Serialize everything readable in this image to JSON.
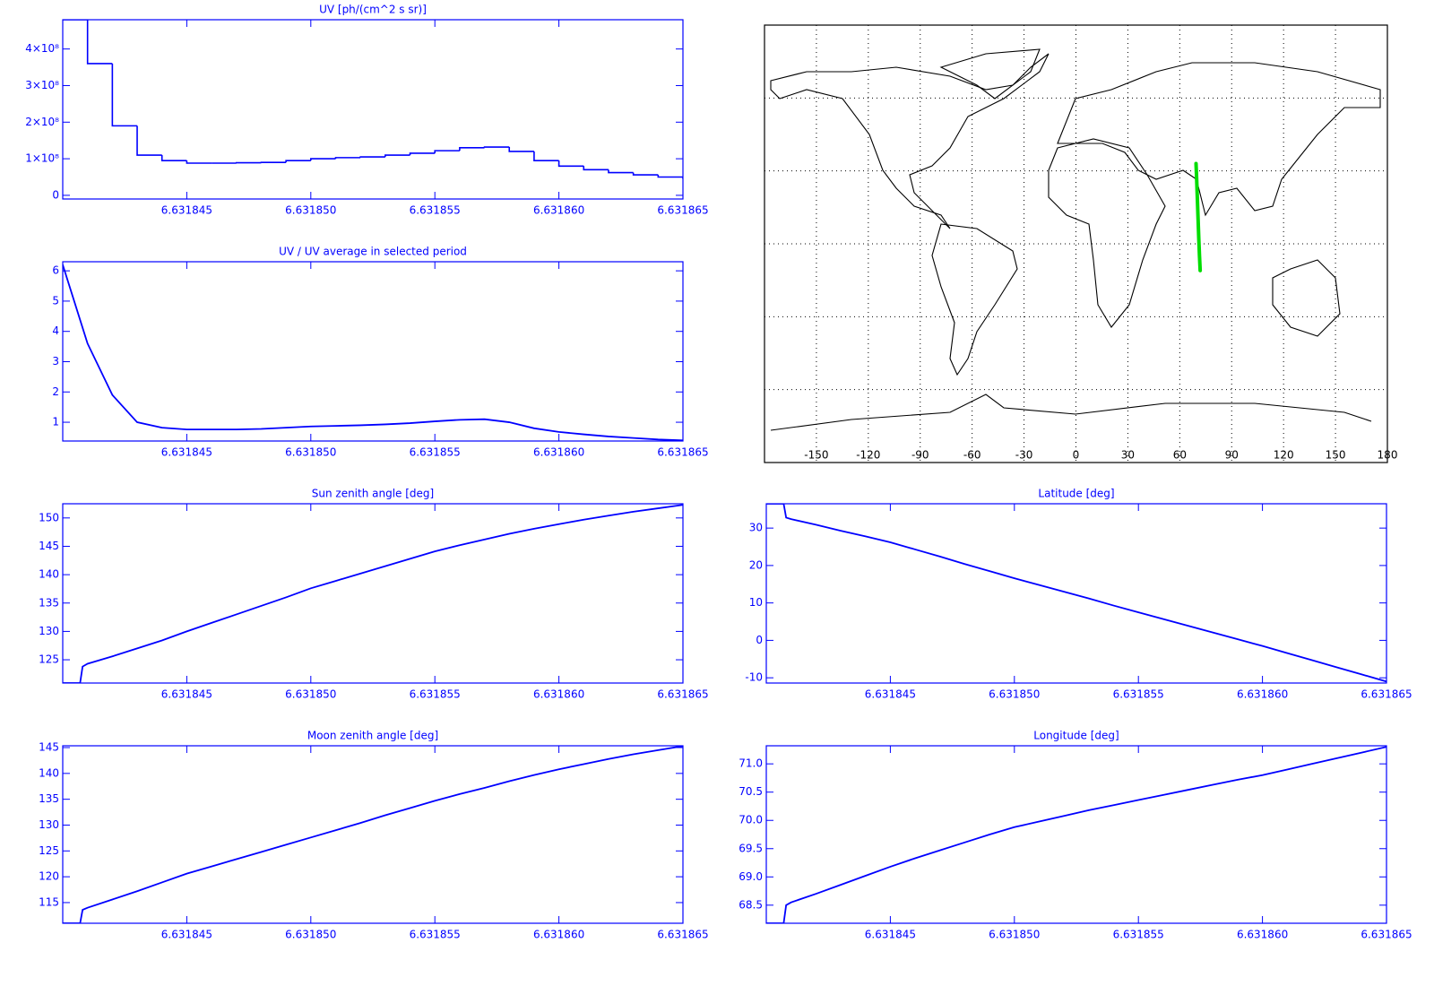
{
  "chart_data": [
    {
      "type": "line",
      "title": "UV [ph/(cm^2 s sr)]",
      "step": true,
      "color": "#0000ff",
      "x": [
        6.63184,
        6.631841,
        6.631842,
        6.631843,
        6.631844,
        6.631845,
        6.631846,
        6.631847,
        6.631848,
        6.631849,
        6.63185,
        6.631851,
        6.631852,
        6.631853,
        6.631854,
        6.631855,
        6.631856,
        6.631857,
        6.631858,
        6.631859,
        6.63186,
        6.631861,
        6.631862,
        6.631863,
        6.631864,
        6.631865
      ],
      "values": [
        480000000,
        360000000,
        190000000,
        110000000,
        95000000,
        88000000,
        88000000,
        89000000,
        90000000,
        95000000,
        100000000,
        103000000,
        105000000,
        110000000,
        115000000,
        122000000,
        130000000,
        132000000,
        120000000,
        95000000,
        80000000,
        70000000,
        62000000,
        56000000,
        50000000,
        45000000
      ],
      "xlim": [
        6.63184,
        6.631865
      ],
      "ylim": [
        -10000000,
        480000000
      ],
      "xticks": [
        6.631845,
        {
          "value": 6.63185,
          "label": "6.631850"
        },
        6.631855,
        {
          "value": 6.63186,
          "label": "6.631860"
        },
        6.631865
      ],
      "yticks": [
        0,
        {
          "value": 100000000,
          "label": "1×10⁸"
        },
        {
          "value": 200000000,
          "label": "2×10⁸"
        },
        {
          "value": 300000000,
          "label": "3×10⁸"
        },
        {
          "value": 400000000,
          "label": "4×10⁸"
        }
      ]
    },
    {
      "type": "map",
      "color": "#00dd00",
      "grid": true,
      "x": [
        69.4,
        69.8,
        70.2,
        70.6,
        71.0,
        71.4,
        71.8
      ],
      "values": [
        33,
        26,
        18,
        10,
        2,
        -5,
        -11
      ],
      "xlim": [
        -180,
        180
      ],
      "ylim": [
        -90,
        90
      ],
      "xticks": [
        -150,
        -120,
        -90,
        -60,
        -30,
        0,
        30,
        60,
        90,
        120,
        150,
        180
      ],
      "yticks": [
        -60,
        -30,
        0,
        30,
        60
      ]
    },
    {
      "type": "line",
      "title": "UV / UV average in selected period",
      "color": "#0000ff",
      "x": [
        6.63184,
        6.631841,
        6.631842,
        6.631843,
        6.631844,
        6.631845,
        6.631846,
        6.631847,
        6.631848,
        6.631849,
        6.63185,
        6.631851,
        6.631852,
        6.631853,
        6.631854,
        6.631855,
        6.631856,
        6.631857,
        6.631858,
        6.631859,
        6.63186,
        6.631861,
        6.631862,
        6.631863,
        6.631864,
        6.631865
      ],
      "values": [
        6.2,
        3.6,
        1.9,
        1.0,
        0.82,
        0.76,
        0.76,
        0.76,
        0.78,
        0.82,
        0.86,
        0.88,
        0.9,
        0.93,
        0.97,
        1.03,
        1.08,
        1.1,
        1.0,
        0.8,
        0.68,
        0.6,
        0.53,
        0.48,
        0.43,
        0.4
      ],
      "xlim": [
        6.63184,
        6.631865
      ],
      "ylim": [
        0.38,
        6.3
      ],
      "xticks": [
        6.631845,
        {
          "value": 6.63185,
          "label": "6.631850"
        },
        6.631855,
        {
          "value": 6.63186,
          "label": "6.631860"
        },
        6.631865
      ],
      "yticks": [
        1,
        2,
        3,
        4,
        5,
        6
      ]
    },
    {
      "type": "line",
      "title": "Sun zenith angle [deg]",
      "color": "#0000ff",
      "x": [
        6.63184,
        6.6318407,
        6.6318408,
        6.631841,
        6.631842,
        6.631843,
        6.631844,
        6.631845,
        6.631846,
        6.631847,
        6.631848,
        6.631849,
        6.63185,
        6.631851,
        6.631852,
        6.631853,
        6.631854,
        6.631855,
        6.631856,
        6.631857,
        6.631858,
        6.631859,
        6.63186,
        6.631861,
        6.631862,
        6.631863,
        6.631864,
        6.631865
      ],
      "values": [
        120.9,
        120.9,
        123.8,
        124.3,
        125.6,
        127.0,
        128.4,
        130.0,
        131.5,
        133.0,
        134.5,
        136.0,
        137.6,
        138.9,
        140.2,
        141.5,
        142.8,
        144.1,
        145.2,
        146.2,
        147.2,
        148.1,
        148.9,
        149.7,
        150.4,
        151.1,
        151.7,
        152.3
      ],
      "xlim": [
        6.63184,
        6.631865
      ],
      "ylim": [
        120.9,
        152.5
      ],
      "xticks": [
        6.631845,
        {
          "value": 6.63185,
          "label": "6.631850"
        },
        6.631855,
        {
          "value": 6.63186,
          "label": "6.631860"
        },
        6.631865
      ],
      "yticks": [
        125,
        130,
        135,
        140,
        145,
        150
      ]
    },
    {
      "type": "line",
      "title": "Latitude [deg]",
      "color": "#0000ff",
      "x": [
        6.63184,
        6.6318407,
        6.6318408,
        6.631841,
        6.631842,
        6.631843,
        6.631844,
        6.631845,
        6.631846,
        6.631847,
        6.631848,
        6.631849,
        6.63185,
        6.631851,
        6.631852,
        6.631853,
        6.631854,
        6.631855,
        6.631856,
        6.631857,
        6.631858,
        6.631859,
        6.63186,
        6.631861,
        6.631862,
        6.631863,
        6.631864,
        6.631865
      ],
      "values": [
        36.5,
        36.5,
        32.8,
        32.4,
        30.9,
        29.3,
        27.8,
        26.2,
        24.3,
        22.4,
        20.4,
        18.5,
        16.6,
        14.8,
        13.0,
        11.2,
        9.3,
        7.5,
        5.7,
        3.9,
        2.1,
        0.3,
        -1.5,
        -3.4,
        -5.3,
        -7.2,
        -9.1,
        -11.0
      ],
      "xlim": [
        6.63184,
        6.631865
      ],
      "ylim": [
        -11.4,
        36.5
      ],
      "xticks": [
        6.631845,
        {
          "value": 6.63185,
          "label": "6.631850"
        },
        6.631855,
        {
          "value": 6.63186,
          "label": "6.631860"
        },
        6.631865
      ],
      "yticks": [
        -10,
        0,
        10,
        20,
        30
      ]
    },
    {
      "type": "line",
      "title": "Moon zenith angle [deg]",
      "color": "#0000ff",
      "x": [
        6.63184,
        6.6318407,
        6.6318408,
        6.631841,
        6.631842,
        6.631843,
        6.631844,
        6.631845,
        6.631846,
        6.631847,
        6.631848,
        6.631849,
        6.63185,
        6.631851,
        6.631852,
        6.631853,
        6.631854,
        6.631855,
        6.631856,
        6.631857,
        6.631858,
        6.631859,
        6.63186,
        6.631861,
        6.631862,
        6.631863,
        6.631864,
        6.631865
      ],
      "values": [
        111.0,
        111.0,
        113.6,
        114.0,
        115.6,
        117.2,
        118.9,
        120.6,
        122.0,
        123.4,
        124.8,
        126.2,
        127.6,
        129.0,
        130.4,
        131.9,
        133.3,
        134.7,
        136.0,
        137.2,
        138.5,
        139.7,
        140.8,
        141.8,
        142.8,
        143.7,
        144.5,
        145.3
      ],
      "xlim": [
        6.63184,
        6.631865
      ],
      "ylim": [
        111.0,
        145.35
      ],
      "xticks": [
        6.631845,
        {
          "value": 6.63185,
          "label": "6.631850"
        },
        6.631855,
        {
          "value": 6.63186,
          "label": "6.631860"
        },
        6.631865
      ],
      "yticks": [
        115,
        120,
        125,
        130,
        135,
        140,
        145
      ]
    },
    {
      "type": "line",
      "title": "Longitude [deg]",
      "color": "#0000ff",
      "x": [
        6.63184,
        6.6318407,
        6.6318408,
        6.631841,
        6.631842,
        6.631843,
        6.631844,
        6.631845,
        6.631846,
        6.631847,
        6.631848,
        6.631849,
        6.63185,
        6.631851,
        6.631852,
        6.631853,
        6.631854,
        6.631855,
        6.631856,
        6.631857,
        6.631858,
        6.631859,
        6.63186,
        6.631861,
        6.631862,
        6.631863,
        6.631864,
        6.631865
      ],
      "values": [
        68.18,
        68.18,
        68.5,
        68.55,
        68.7,
        68.86,
        69.02,
        69.18,
        69.33,
        69.47,
        69.61,
        69.75,
        69.88,
        69.98,
        70.08,
        70.18,
        70.27,
        70.36,
        70.45,
        70.54,
        70.63,
        70.72,
        70.8,
        70.9,
        71.0,
        71.1,
        71.2,
        71.3
      ],
      "xlim": [
        6.63184,
        6.631865
      ],
      "ylim": [
        68.18,
        71.32
      ],
      "xticks": [
        6.631845,
        {
          "value": 6.63185,
          "label": "6.631850"
        },
        6.631855,
        {
          "value": 6.63186,
          "label": "6.631860"
        },
        6.631865
      ],
      "yticks": [
        68.5,
        {
          "value": 69,
          "label": "69.0"
        },
        69.5,
        {
          "value": 70,
          "label": "70.0"
        },
        70.5,
        {
          "value": 71,
          "label": "71.0"
        }
      ]
    }
  ]
}
